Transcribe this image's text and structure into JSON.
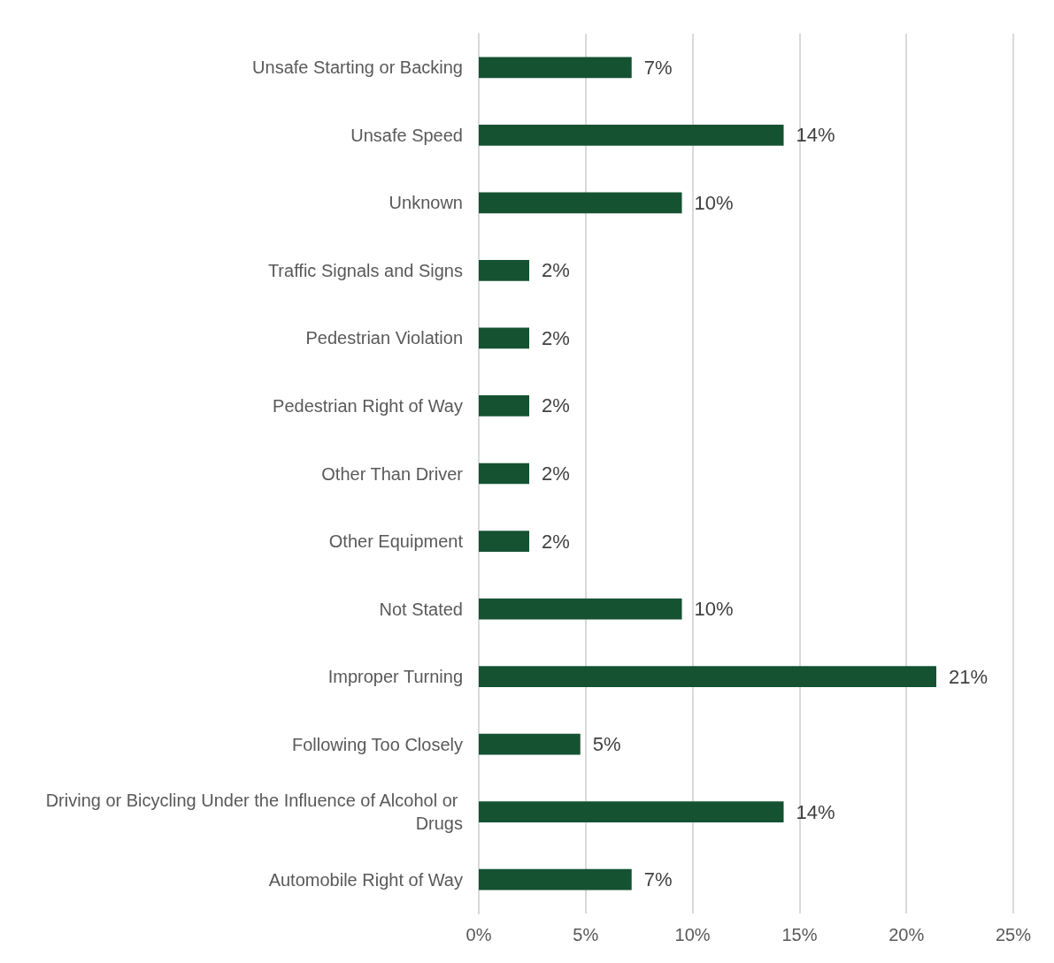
{
  "chart_data": {
    "type": "bar",
    "orientation": "horizontal",
    "categories": [
      "Unsafe Starting or Backing",
      "Unsafe Speed",
      "Unknown",
      "Traffic Signals and Signs",
      "Pedestrian Violation",
      "Pedestrian Right of Way",
      "Other Than Driver",
      "Other Equipment",
      "Not Stated",
      "Improper Turning",
      "Following Too Closely",
      "Driving or Bicycling Under the Influence of Alcohol or Drugs",
      "Automobile Right of Way"
    ],
    "values": [
      7.15,
      14.26,
      9.5,
      2.36,
      2.36,
      2.36,
      2.36,
      2.36,
      9.5,
      21.4,
      4.75,
      14.26,
      7.15
    ],
    "value_labels": [
      "7%",
      "14%",
      "10%",
      "2%",
      "2%",
      "2%",
      "2%",
      "2%",
      "10%",
      "21%",
      "5%",
      "14%",
      "7%"
    ],
    "color": "#145232",
    "xlim": [
      0,
      25
    ],
    "xticks": [
      {
        "value": 0,
        "label": "0%"
      },
      {
        "value": 5,
        "label": "5%"
      },
      {
        "value": 10,
        "label": "10%"
      },
      {
        "value": 15,
        "label": "15%"
      },
      {
        "value": 20,
        "label": "20%"
      },
      {
        "value": 25,
        "label": "25%"
      }
    ],
    "grid": "x"
  }
}
